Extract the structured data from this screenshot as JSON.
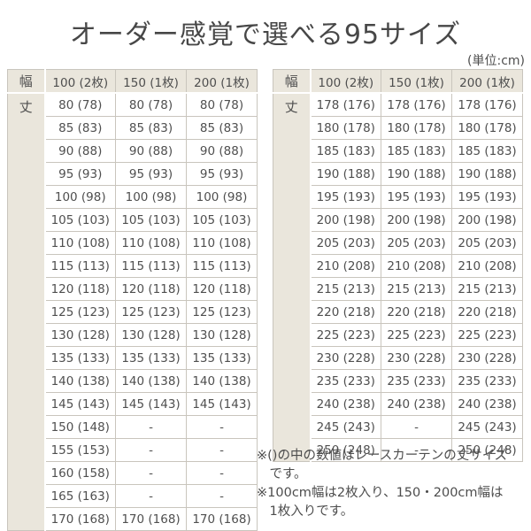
{
  "page": {
    "title": "オーダー感覚で選べる95サイズ",
    "unit_note": "(単位:cm)"
  },
  "colors": {
    "header_beige": "#eae6dc",
    "grid_border": "#c9c5bd",
    "text": "#4f4f4f",
    "background": "#ffffff"
  },
  "footnotes": [
    "※()の中の数値はレースカーテンの丈サイズ\nです。",
    "※100cm幅は2枚入り、150・200cm幅は\n1枚入りです。"
  ],
  "chart_data": [
    {
      "type": "table",
      "title": "オーダー感覚で選べる95サイズ",
      "unit": "cm",
      "corner_label": "幅",
      "row_axis_label": "丈",
      "columns": [
        "100 (2枚)",
        "150 (1枚)",
        "200 (1枚)"
      ],
      "rows": [
        [
          "80 (78)",
          "80 (78)",
          "80 (78)"
        ],
        [
          "85 (83)",
          "85 (83)",
          "85 (83)"
        ],
        [
          "90 (88)",
          "90 (88)",
          "90 (88)"
        ],
        [
          "95 (93)",
          "95 (93)",
          "95 (93)"
        ],
        [
          "100 (98)",
          "100 (98)",
          "100 (98)"
        ],
        [
          "105 (103)",
          "105 (103)",
          "105 (103)"
        ],
        [
          "110 (108)",
          "110 (108)",
          "110 (108)"
        ],
        [
          "115 (113)",
          "115 (113)",
          "115 (113)"
        ],
        [
          "120 (118)",
          "120 (118)",
          "120 (118)"
        ],
        [
          "125 (123)",
          "125 (123)",
          "125 (123)"
        ],
        [
          "130 (128)",
          "130 (128)",
          "130 (128)"
        ],
        [
          "135 (133)",
          "135 (133)",
          "135 (133)"
        ],
        [
          "140 (138)",
          "140 (138)",
          "140 (138)"
        ],
        [
          "145 (143)",
          "145 (143)",
          "145 (143)"
        ],
        [
          "150 (148)",
          "-",
          "-"
        ],
        [
          "155 (153)",
          "-",
          "-"
        ],
        [
          "160 (158)",
          "-",
          "-"
        ],
        [
          "165 (163)",
          "-",
          "-"
        ],
        [
          "170 (168)",
          "170 (168)",
          "170 (168)"
        ]
      ]
    },
    {
      "type": "table",
      "title": "オーダー感覚で選べる95サイズ",
      "unit": "cm",
      "corner_label": "幅",
      "row_axis_label": "丈",
      "columns": [
        "100 (2枚)",
        "150 (1枚)",
        "200 (1枚)"
      ],
      "rows": [
        [
          "178 (176)",
          "178 (176)",
          "178 (176)"
        ],
        [
          "180 (178)",
          "180 (178)",
          "180 (178)"
        ],
        [
          "185 (183)",
          "185 (183)",
          "185 (183)"
        ],
        [
          "190 (188)",
          "190 (188)",
          "190 (188)"
        ],
        [
          "195 (193)",
          "195 (193)",
          "195 (193)"
        ],
        [
          "200 (198)",
          "200 (198)",
          "200 (198)"
        ],
        [
          "205 (203)",
          "205 (203)",
          "205 (203)"
        ],
        [
          "210 (208)",
          "210 (208)",
          "210 (208)"
        ],
        [
          "215 (213)",
          "215 (213)",
          "215 (213)"
        ],
        [
          "220 (218)",
          "220 (218)",
          "220 (218)"
        ],
        [
          "225 (223)",
          "225 (223)",
          "225 (223)"
        ],
        [
          "230 (228)",
          "230 (228)",
          "230 (228)"
        ],
        [
          "235 (233)",
          "235 (233)",
          "235 (233)"
        ],
        [
          "240 (238)",
          "240 (238)",
          "240 (238)"
        ],
        [
          "245 (243)",
          "-",
          "245 (243)"
        ],
        [
          "250 (248)",
          "-",
          "250 (248)"
        ]
      ]
    }
  ]
}
